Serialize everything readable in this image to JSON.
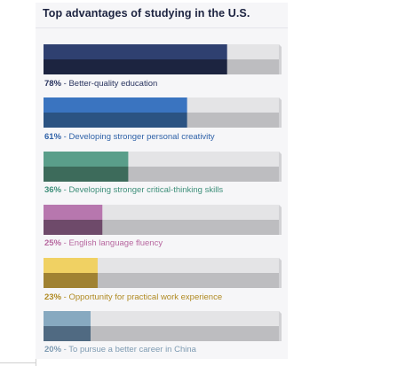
{
  "chart_data": {
    "type": "bar",
    "title": "Top advantages of studying in the U.S.",
    "xlim": [
      0,
      100
    ],
    "grid": false,
    "categories": [
      "Better-quality education",
      "Developing stronger personal creativity",
      "Developing stronger critical-thinking skills",
      "English language fluency",
      "Opportunity for practical work experience",
      "To pursue a better career in China"
    ],
    "values": [
      78,
      61,
      36,
      25,
      23,
      20
    ],
    "percent_labels": [
      "78%",
      "61%",
      "36%",
      "25%",
      "23%",
      "20%"
    ],
    "colors": {
      "top": [
        "#2f4070",
        "#3a74c0",
        "#5a9e8a",
        "#b777ae",
        "#f0d163",
        "#87a9c0"
      ],
      "bottom": [
        "#1c2440",
        "#2b5382",
        "#3d6b5b",
        "#6e4a6a",
        "#a08232",
        "#506a82"
      ],
      "label": [
        "#2a3560",
        "#2f62a8",
        "#3e8f7a",
        "#b7679f",
        "#b08a22",
        "#7e9bb2"
      ],
      "track_top": "#e4e4e6",
      "track_bottom": "#bdbdc0"
    }
  }
}
